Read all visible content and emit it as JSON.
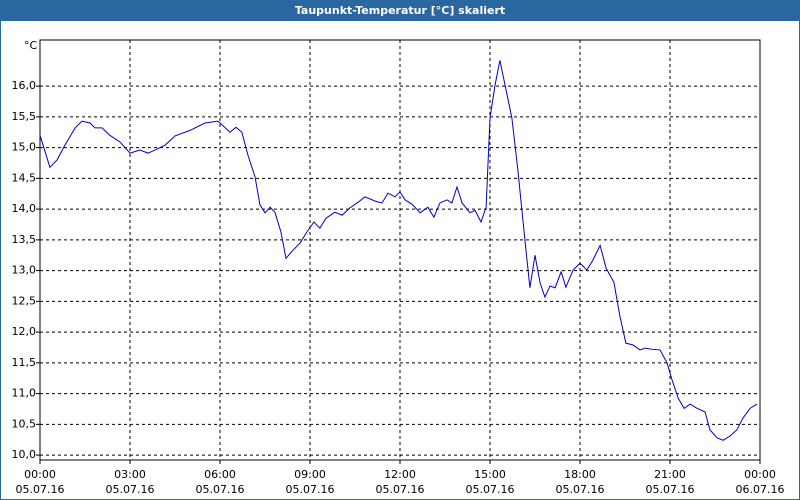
{
  "chart_data": {
    "type": "line",
    "title": "Taupunkt-Temperatur [°C] skaliert",
    "y_unit": "°C",
    "x": [
      0,
      0.33,
      0.57,
      0.83,
      1.17,
      1.4,
      1.67,
      1.83,
      2.07,
      2.33,
      2.67,
      3,
      3.33,
      3.6,
      3.83,
      4.17,
      4.5,
      5,
      5.5,
      5.93,
      6.07,
      6.33,
      6.53,
      6.73,
      6.93,
      7.17,
      7.33,
      7.5,
      7.67,
      7.83,
      8.03,
      8.2,
      8.43,
      8.67,
      8.9,
      9.13,
      9.33,
      9.53,
      9.83,
      10.07,
      10.33,
      10.6,
      10.83,
      11.17,
      11.4,
      11.6,
      11.83,
      12,
      12.17,
      12.4,
      12.67,
      12.93,
      13.13,
      13.33,
      13.57,
      13.73,
      13.9,
      14.07,
      14.33,
      14.5,
      14.7,
      14.87,
      15,
      15.17,
      15.33,
      15.5,
      15.73,
      15.93,
      16.13,
      16.33,
      16.5,
      16.67,
      16.83,
      17,
      17.17,
      17.37,
      17.53,
      17.77,
      18,
      18.23,
      18.43,
      18.67,
      18.87,
      19.13,
      19.33,
      19.53,
      19.77,
      20,
      20.17,
      20.4,
      20.67,
      20.9,
      21.07,
      21.27,
      21.47,
      21.67,
      21.9,
      22.17,
      22.33,
      22.57,
      22.77,
      23,
      23.23,
      23.43,
      23.67,
      23.9
    ],
    "series": [
      {
        "name": "Taupunkt-Temperatur",
        "color": "#0000c0",
        "values": [
          15.2,
          14.68,
          14.8,
          15.04,
          15.32,
          15.43,
          15.4,
          15.32,
          15.32,
          15.2,
          15.09,
          14.91,
          14.96,
          14.91,
          14.96,
          15.04,
          15.19,
          15.28,
          15.4,
          15.43,
          15.37,
          15.25,
          15.33,
          15.25,
          14.88,
          14.52,
          14.07,
          13.94,
          14.03,
          13.95,
          13.63,
          13.2,
          13.33,
          13.45,
          13.63,
          13.79,
          13.69,
          13.85,
          13.95,
          13.9,
          14.02,
          14.11,
          14.2,
          14.13,
          14.1,
          14.26,
          14.2,
          14.28,
          14.15,
          14.08,
          13.94,
          14.03,
          13.87,
          14.1,
          14.15,
          14.1,
          14.36,
          14.1,
          13.94,
          13.98,
          13.79,
          14.03,
          15.48,
          16.02,
          16.42,
          16.02,
          15.48,
          14.63,
          13.66,
          12.72,
          13.25,
          12.8,
          12.57,
          12.75,
          12.72,
          12.98,
          12.73,
          13.01,
          13.12,
          13.01,
          13.17,
          13.41,
          13.04,
          12.81,
          12.26,
          11.82,
          11.79,
          11.71,
          11.74,
          11.72,
          11.71,
          11.5,
          11.22,
          10.93,
          10.76,
          10.83,
          10.76,
          10.7,
          10.41,
          10.28,
          10.24,
          10.31,
          10.41,
          10.6,
          10.76,
          10.83
        ]
      }
    ],
    "xlim": [
      0,
      24
    ],
    "xticks": [
      {
        "value": 0,
        "label": "00:00"
      },
      {
        "value": 3,
        "label": "03:00"
      },
      {
        "value": 6,
        "label": "06:00"
      },
      {
        "value": 9,
        "label": "09:00"
      },
      {
        "value": 12,
        "label": "12:00"
      },
      {
        "value": 15,
        "label": "15:00"
      },
      {
        "value": 18,
        "label": "18:00"
      },
      {
        "value": 21,
        "label": "21:00"
      },
      {
        "value": 24,
        "label": "00:00"
      }
    ],
    "xtick_dates": [
      "05.07.16",
      "05.07.16",
      "05.07.16",
      "05.07.16",
      "05.07.16",
      "05.07.16",
      "05.07.16",
      "05.07.16",
      "06.07.16"
    ],
    "ylim": [
      9.92,
      16.75
    ],
    "yticks": [
      {
        "value": 10,
        "label": "10,0"
      },
      {
        "value": 10.5,
        "label": "10,5"
      },
      {
        "value": 11,
        "label": "11,0"
      },
      {
        "value": 11.5,
        "label": "11,5"
      },
      {
        "value": 12,
        "label": "12,0"
      },
      {
        "value": 12.5,
        "label": "12,5"
      },
      {
        "value": 13,
        "label": "13,0"
      },
      {
        "value": 13.5,
        "label": "13,5"
      },
      {
        "value": 14,
        "label": "14,0"
      },
      {
        "value": 14.5,
        "label": "14,5"
      },
      {
        "value": 15,
        "label": "15,0"
      },
      {
        "value": 15.5,
        "label": "15,5"
      },
      {
        "value": 16,
        "label": "16,0"
      }
    ],
    "grid": true
  }
}
